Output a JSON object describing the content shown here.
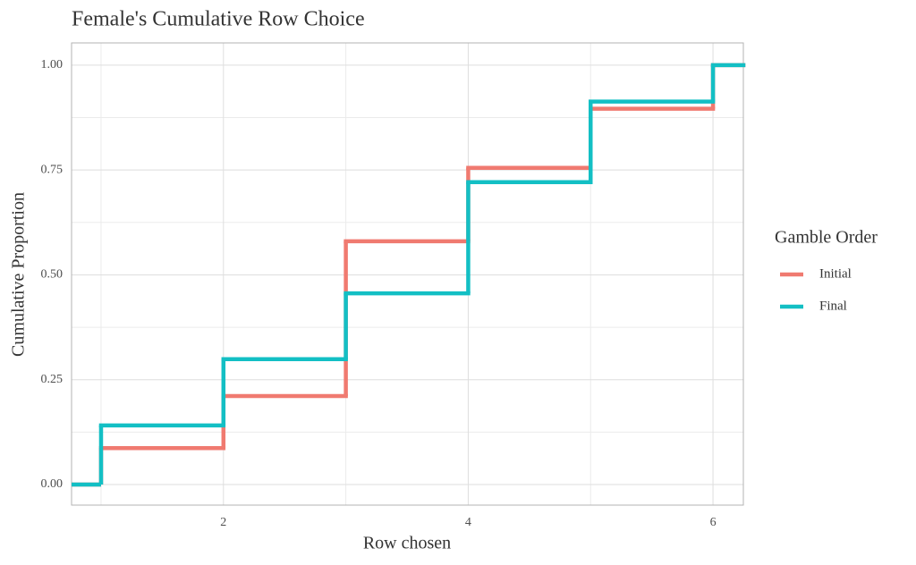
{
  "chart_data": {
    "type": "step",
    "title": "Female's Cumulative Row Choice",
    "x_label": "Row chosen",
    "y_label": "Cumulative Proportion",
    "legend_title": "Gamble Order",
    "legend_position": "right",
    "grid": true,
    "x": [
      1,
      2,
      3,
      4,
      5,
      6
    ],
    "series": [
      {
        "name": "Initial",
        "color": "#f07a70",
        "values": [
          0.087,
          0.211,
          0.58,
          0.755,
          0.896,
          1.0
        ]
      },
      {
        "name": "Final",
        "color": "#13bfc4",
        "values": [
          0.141,
          0.299,
          0.456,
          0.721,
          0.913,
          1.0
        ]
      }
    ],
    "xlim": [
      0.759,
      6.248
    ],
    "xticks": [
      2,
      4,
      6
    ],
    "ylim": [
      -0.049,
      1.053
    ],
    "yticks": [
      {
        "value": 0,
        "label": "0.00"
      },
      {
        "value": 0.25,
        "label": "0.25"
      },
      {
        "value": 0.5,
        "label": "0.50"
      },
      {
        "value": 0.75,
        "label": "0.75"
      },
      {
        "value": 1,
        "label": "1.00"
      }
    ]
  }
}
